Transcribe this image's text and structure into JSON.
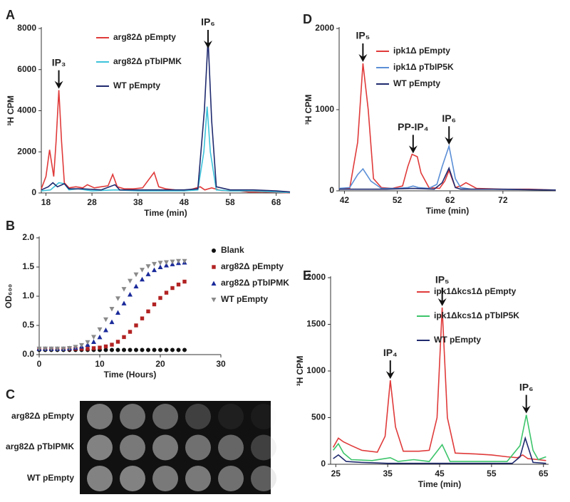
{
  "chart_data": [
    {
      "type": "line",
      "panel": "A",
      "xlabel": "Time (min)",
      "ylabel": "³H CPM",
      "xlim": [
        17,
        71
      ],
      "xticks": [
        18,
        28,
        38,
        48,
        58,
        68
      ],
      "ylim": [
        0,
        8000
      ],
      "yticks": [
        0,
        2000,
        4000,
        6000,
        8000
      ],
      "legend": "top-left",
      "series": [
        {
          "name": "arg82Δ pEmpty",
          "color": "#e03a3a",
          "x": [
            17,
            18,
            18.8,
            19.7,
            20.2,
            20.8,
            21.4,
            22,
            23,
            24.5,
            26,
            27,
            28.5,
            30,
            31.5,
            32.5,
            33.5,
            35,
            37,
            39,
            41.5,
            42.5,
            44,
            46,
            48,
            50,
            51.5,
            52.5,
            54,
            56,
            58,
            60,
            62,
            65,
            68,
            71
          ],
          "values": [
            200,
            800,
            2100,
            800,
            2500,
            5000,
            2500,
            500,
            250,
            300,
            250,
            400,
            250,
            300,
            350,
            900,
            300,
            200,
            200,
            250,
            1000,
            300,
            200,
            150,
            100,
            200,
            300,
            150,
            250,
            120,
            100,
            100,
            50,
            50,
            30,
            0
          ]
        },
        {
          "name": "arg82Δ pTbIPMK",
          "color": "#3ec3da",
          "x": [
            17,
            19,
            20.8,
            22,
            23,
            25,
            28,
            33,
            38,
            43,
            48,
            51,
            52.3,
            53,
            53.7,
            55,
            58,
            63,
            68,
            71
          ],
          "values": [
            100,
            150,
            500,
            450,
            150,
            200,
            100,
            150,
            100,
            100,
            100,
            150,
            2000,
            4200,
            2000,
            150,
            100,
            100,
            50,
            20
          ]
        },
        {
          "name": "WT pEmpty",
          "color": "#1f2a6e",
          "x": [
            17,
            18.5,
            19.5,
            20.5,
            22,
            23,
            26,
            30,
            33,
            34,
            38,
            43,
            48,
            51,
            52.4,
            53.2,
            54,
            55,
            58,
            63,
            68,
            71
          ],
          "values": [
            150,
            300,
            500,
            300,
            450,
            200,
            200,
            150,
            400,
            150,
            150,
            150,
            150,
            200,
            4000,
            7500,
            3500,
            300,
            150,
            150,
            100,
            50
          ]
        }
      ],
      "annotations": [
        {
          "text": "IP₃",
          "x": 20.8
        },
        {
          "text": "IP₆",
          "x": 53.2
        }
      ]
    },
    {
      "type": "scatter",
      "panel": "B",
      "xlabel": "Time (Hours)",
      "ylabel": "OD₆₀₀",
      "xlim": [
        0,
        30
      ],
      "xticks": [
        0,
        10,
        20,
        30
      ],
      "ylim": [
        0,
        2
      ],
      "yticks": [
        {
          "value": 0,
          "label": "0.0"
        },
        0.5,
        {
          "value": 1,
          "label": "1.0"
        },
        1.5,
        {
          "value": 2,
          "label": "2.0"
        }
      ],
      "legend": "top-right",
      "x": [
        0,
        1,
        2,
        3,
        4,
        5,
        6,
        7,
        8,
        9,
        10,
        11,
        12,
        13,
        14,
        15,
        16,
        17,
        18,
        19,
        20,
        21,
        22,
        23,
        24
      ],
      "series": [
        {
          "name": "Blank",
          "color": "#111111",
          "marker": "circle",
          "values": [
            0.08,
            0.08,
            0.08,
            0.08,
            0.08,
            0.08,
            0.08,
            0.08,
            0.08,
            0.08,
            0.08,
            0.08,
            0.08,
            0.08,
            0.08,
            0.08,
            0.08,
            0.08,
            0.08,
            0.08,
            0.08,
            0.08,
            0.08,
            0.08,
            0.08
          ]
        },
        {
          "name": "arg82Δ pEmpty",
          "color": "#b22222",
          "marker": "square",
          "values": [
            0.1,
            0.1,
            0.1,
            0.1,
            0.1,
            0.1,
            0.1,
            0.1,
            0.1,
            0.11,
            0.12,
            0.14,
            0.17,
            0.22,
            0.3,
            0.39,
            0.5,
            0.62,
            0.74,
            0.86,
            0.97,
            1.06,
            1.14,
            1.2,
            1.25
          ]
        },
        {
          "name": "arg82Δ pTbIPMK",
          "color": "#1a2a9a",
          "marker": "triangle",
          "values": [
            0.1,
            0.1,
            0.1,
            0.1,
            0.1,
            0.11,
            0.12,
            0.14,
            0.17,
            0.22,
            0.3,
            0.42,
            0.56,
            0.72,
            0.88,
            1.03,
            1.17,
            1.29,
            1.38,
            1.45,
            1.5,
            1.53,
            1.55,
            1.57,
            1.58
          ]
        },
        {
          "name": "WT pEmpty",
          "color": "#8a8a8a",
          "marker": "triangle-down",
          "values": [
            0.1,
            0.1,
            0.1,
            0.1,
            0.1,
            0.11,
            0.13,
            0.16,
            0.21,
            0.3,
            0.43,
            0.6,
            0.78,
            0.96,
            1.12,
            1.26,
            1.37,
            1.45,
            1.51,
            1.55,
            1.57,
            1.58,
            1.59,
            1.6,
            1.6
          ]
        }
      ]
    },
    {
      "type": "line",
      "panel": "D",
      "xlabel": "Time (min)",
      "ylabel": "³H CPM",
      "xlim": [
        41,
        82
      ],
      "xticks": [
        42,
        52,
        62,
        72
      ],
      "ylim": [
        0,
        2000
      ],
      "yticks": [
        0,
        1000,
        2000
      ],
      "legend": "top-right",
      "series": [
        {
          "name": "ipk1Δ pEmpty",
          "color": "#e03a3a",
          "x": [
            41,
            43,
            44.5,
            45.5,
            46.5,
            47.5,
            49,
            51,
            53,
            54,
            54.8,
            55.8,
            56.5,
            58,
            60,
            61,
            61.8,
            63,
            64,
            65,
            67,
            72,
            77,
            82
          ],
          "values": [
            20,
            30,
            600,
            1570,
            1000,
            150,
            40,
            30,
            60,
            300,
            450,
            420,
            220,
            40,
            30,
            120,
            250,
            40,
            60,
            100,
            30,
            20,
            20,
            10
          ]
        },
        {
          "name": "ipk1Δ pTbIP5K",
          "color": "#5b8fd6",
          "x": [
            41,
            43,
            44.5,
            45.5,
            47,
            49,
            52,
            54,
            55,
            56,
            58,
            59.5,
            60.5,
            61.8,
            63,
            64,
            66,
            72,
            82
          ],
          "values": [
            30,
            40,
            200,
            270,
            120,
            30,
            30,
            40,
            60,
            40,
            30,
            80,
            300,
            550,
            150,
            40,
            20,
            20,
            10
          ]
        },
        {
          "name": "WT pEmpty",
          "color": "#1f2a6e",
          "x": [
            41,
            50,
            55,
            59,
            60.5,
            61.8,
            63,
            64,
            70,
            82
          ],
          "values": [
            20,
            20,
            30,
            20,
            100,
            280,
            40,
            20,
            20,
            10
          ]
        }
      ],
      "annotations": [
        {
          "text": "IP₅",
          "x": 45.5
        },
        {
          "text": "PP-IP₄",
          "x": 55
        },
        {
          "text": "IP₆",
          "x": 61.8
        }
      ]
    },
    {
      "type": "line",
      "panel": "E",
      "xlabel": "Time (min)",
      "ylabel": "³H CPM",
      "xlim": [
        24,
        66
      ],
      "xticks": [
        25,
        35,
        45,
        55,
        65
      ],
      "ylim": [
        0,
        2000
      ],
      "yticks": [
        0,
        500,
        1000,
        1500,
        2000
      ],
      "legend": "top-right",
      "series": [
        {
          "name": "ipk1Δkcs1Δ pEmpty",
          "color": "#e03a3a",
          "x": [
            24.5,
            25.5,
            26.5,
            28,
            30,
            33,
            34.5,
            35.5,
            36.5,
            38,
            41,
            43,
            44.5,
            45.5,
            46.5,
            48,
            52,
            55,
            58,
            60,
            61,
            62,
            64,
            65.5
          ],
          "values": [
            180,
            280,
            240,
            200,
            150,
            130,
            300,
            900,
            400,
            140,
            140,
            150,
            500,
            1680,
            500,
            120,
            110,
            100,
            80,
            70,
            100,
            60,
            50,
            40
          ]
        },
        {
          "name": "ipk1Δkcs1Δ pTbIP5K",
          "color": "#3cc46a",
          "x": [
            24.5,
            25.5,
            26.5,
            28,
            32,
            35.5,
            37,
            40,
            43,
            45.5,
            47,
            52,
            58,
            60.5,
            61.7,
            63,
            64,
            65.5
          ],
          "values": [
            150,
            220,
            120,
            50,
            40,
            70,
            30,
            50,
            30,
            210,
            30,
            30,
            30,
            200,
            530,
            150,
            50,
            80
          ]
        },
        {
          "name": "WT pEmpty",
          "color": "#1f2a6e",
          "x": [
            24.5,
            25.5,
            27,
            30,
            35,
            45,
            55,
            59,
            60.5,
            61.5,
            63,
            65.5
          ],
          "values": [
            60,
            100,
            30,
            20,
            10,
            10,
            10,
            10,
            80,
            280,
            20,
            10
          ]
        }
      ],
      "annotations": [
        {
          "text": "IP₄",
          "x": 35.5
        },
        {
          "text": "IP₅",
          "x": 45.5
        },
        {
          "text": "IP₆",
          "x": 61.7
        }
      ]
    }
  ],
  "spot_assay": {
    "panel": "C",
    "rows": [
      "arg82Δ pEmpty",
      "arg82Δ pTbIPMK",
      "WT pEmpty"
    ]
  }
}
